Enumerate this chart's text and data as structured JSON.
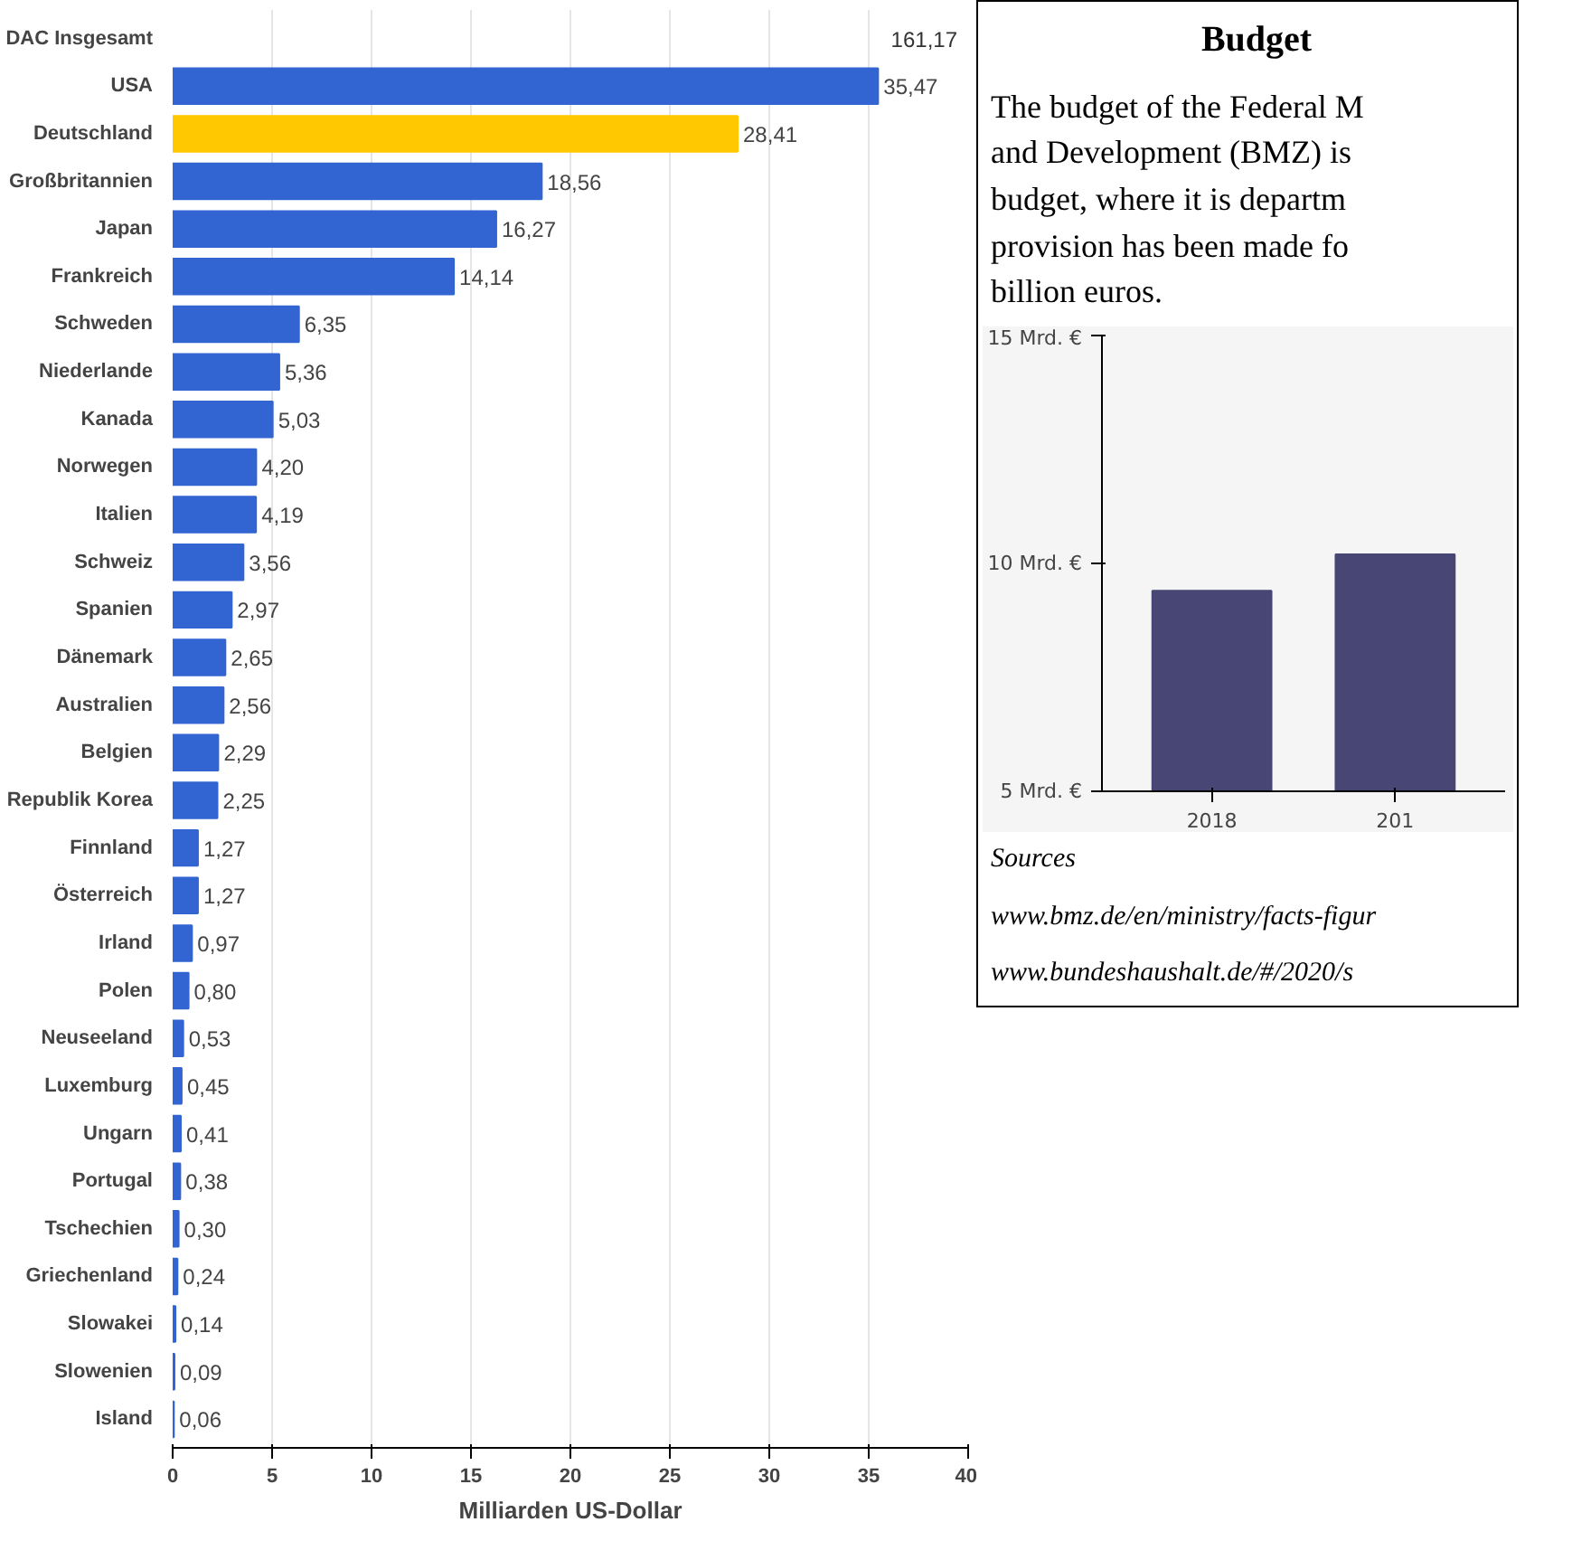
{
  "chart_data": [
    {
      "type": "bar",
      "orientation": "horizontal",
      "xlabel": "Milliarden US-Dollar",
      "xlim": [
        0,
        40
      ],
      "xticks": [
        0,
        5,
        10,
        15,
        20,
        25,
        30,
        35,
        40
      ],
      "grid": "x",
      "categories": [
        "DAC Insgesamt",
        "USA",
        "Deutschland",
        "Großbritannien",
        "Japan",
        "Frankreich",
        "Schweden",
        "Niederlande",
        "Kanada",
        "Norwegen",
        "Italien",
        "Schweiz",
        "Spanien",
        "Dänemark",
        "Australien",
        "Belgien",
        "Republik Korea",
        "Finnland",
        "Österreich",
        "Irland",
        "Polen",
        "Neuseeland",
        "Luxemburg",
        "Ungarn",
        "Portugal",
        "Tschechien",
        "Griechenland",
        "Slowakei",
        "Slowenien",
        "Island"
      ],
      "values": [
        null,
        35.47,
        28.41,
        18.56,
        16.27,
        14.14,
        6.35,
        5.36,
        5.03,
        4.2,
        4.19,
        3.56,
        2.97,
        2.65,
        2.56,
        2.29,
        2.25,
        1.27,
        1.27,
        0.97,
        0.8,
        0.53,
        0.45,
        0.41,
        0.38,
        0.3,
        0.24,
        0.14,
        0.09,
        0.06
      ],
      "value_labels": [
        "161,17",
        "35,47",
        "28,41",
        "18,56",
        "16,27",
        "14,14",
        "6,35",
        "5,36",
        "5,03",
        "4,20",
        "4,19",
        "3,56",
        "2,97",
        "2,65",
        "2,56",
        "2,29",
        "2,25",
        "1,27",
        "1,27",
        "0,97",
        "0,80",
        "0,53",
        "0,45",
        "0,41",
        "0,38",
        "0,30",
        "0,24",
        "0,14",
        "0,09",
        "0,06"
      ],
      "colors": [
        "#5bc8f5",
        "#3264d2",
        "#ffc800",
        "#3264d2",
        "#3264d2",
        "#3264d2",
        "#3264d2",
        "#3264d2",
        "#3264d2",
        "#3264d2",
        "#3264d2",
        "#3264d2",
        "#3264d2",
        "#3264d2",
        "#3264d2",
        "#3264d2",
        "#3264d2",
        "#3264d2",
        "#3264d2",
        "#3264d2",
        "#3264d2",
        "#3264d2",
        "#3264d2",
        "#3264d2",
        "#3264d2",
        "#3264d2",
        "#3264d2",
        "#3264d2",
        "#3264d2",
        "#3264d2"
      ]
    },
    {
      "type": "bar",
      "title": "Budget",
      "subtitle": "The budget of the Federal M\nand Development (BMZ) is\nbudget, where it is departm\nprovision has been made fo\nbillion euros.",
      "categories": [
        "2018",
        "201"
      ],
      "values": [
        9.4,
        10.2
      ],
      "color": "#474674",
      "ylim": [
        5,
        15
      ],
      "yticks": [
        {
          "value": 5,
          "label": "5 Mrd. €"
        },
        {
          "value": 10,
          "label": "10 Mrd. €"
        },
        {
          "value": 15,
          "label": "15 Mrd. €"
        }
      ],
      "annotations": [
        "Sources",
        "www.bmz.de/en/ministry/facts-figur",
        "www.bundeshaushalt.de/#/2020/s"
      ]
    }
  ]
}
